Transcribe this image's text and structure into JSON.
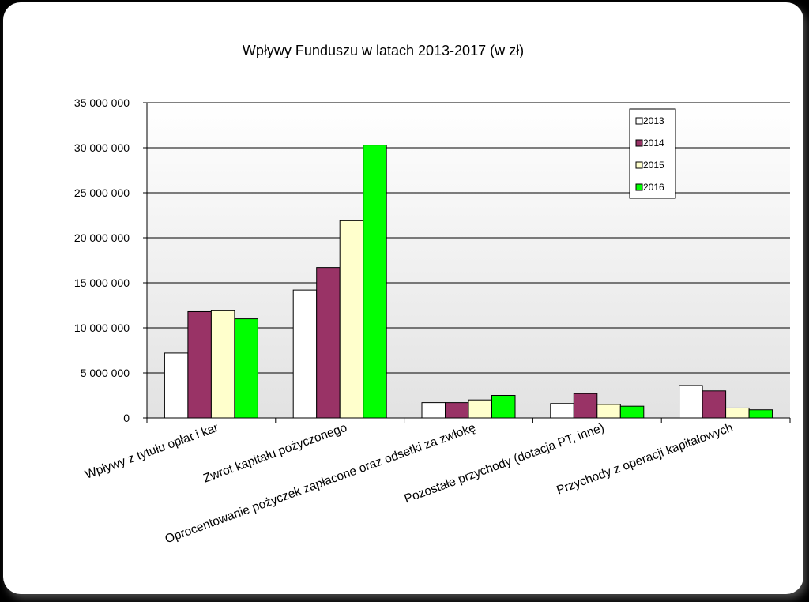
{
  "chart_data": {
    "type": "bar",
    "title": "Wpływy Funduszu w latach 2013-2017 (w zł)",
    "xlabel": "",
    "ylabel": "",
    "ylim": [
      0,
      35000000
    ],
    "yticks": [
      0,
      5000000,
      10000000,
      15000000,
      20000000,
      25000000,
      30000000,
      35000000
    ],
    "ytick_labels": [
      "0",
      "5 000 000",
      "10 000 000",
      "15 000 000",
      "20 000 000",
      "25 000 000",
      "30 000 000",
      "35 000 000"
    ],
    "categories": [
      "Wpływy z tytułu opłat i kar",
      "Zwrot kapitału pożyczonego",
      "Oprocentowanie pożyczek  zapłacone oraz odsetki za zwłokę",
      "Pozostałe przychody  (dotacja PT, inne)",
      "Przychody z operacji kapitałowych"
    ],
    "series": [
      {
        "name": "2013",
        "color": "#ffffff",
        "values": [
          7200000,
          14200000,
          1700000,
          1600000,
          3600000
        ]
      },
      {
        "name": "2014",
        "color": "#993366",
        "values": [
          11800000,
          16700000,
          1700000,
          2700000,
          3000000
        ]
      },
      {
        "name": "2015",
        "color": "#ffffcc",
        "values": [
          11900000,
          21900000,
          2000000,
          1500000,
          1100000
        ]
      },
      {
        "name": "2016",
        "color": "#00ff00",
        "values": [
          11000000,
          30300000,
          2500000,
          1300000,
          900000
        ]
      }
    ],
    "grid": true,
    "legend_position": "top-right"
  }
}
